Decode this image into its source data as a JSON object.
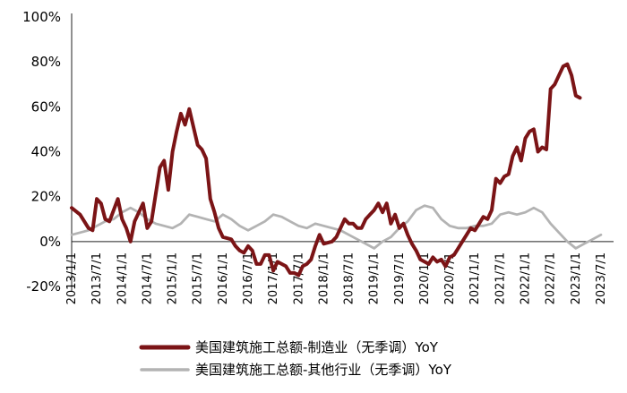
{
  "chart_data": {
    "type": "line",
    "title": "",
    "xlabel": "",
    "ylabel": "",
    "ylim": [
      -20,
      100
    ],
    "yticks": [
      "100%",
      "80%",
      "60%",
      "40%",
      "20%",
      "0%",
      "-20%"
    ],
    "ytick_values": [
      100,
      80,
      60,
      40,
      20,
      0,
      -20
    ],
    "xlim": [
      "2013-01",
      "2023-10"
    ],
    "xticks": [
      "2013/1/1",
      "2013/7/1",
      "2014/1/1",
      "2014/7/1",
      "2015/1/1",
      "2015/7/1",
      "2016/1/1",
      "2016/7/1",
      "2017/1/1",
      "2017/7/1",
      "2018/1/1",
      "2018/7/1",
      "2019/1/1",
      "2019/7/1",
      "2020/1/1",
      "2020/7/1",
      "2021/1/1",
      "2021/7/1",
      "2022/1/1",
      "2022/7/1",
      "2023/1/1",
      "2023/7/1"
    ],
    "xtick_dates": [
      "2013-01",
      "2013-07",
      "2014-01",
      "2014-07",
      "2015-01",
      "2015-07",
      "2016-01",
      "2016-07",
      "2017-01",
      "2017-07",
      "2018-01",
      "2018-07",
      "2019-01",
      "2019-07",
      "2020-01",
      "2020-07",
      "2021-01",
      "2021-07",
      "2022-01",
      "2022-07",
      "2023-01",
      "2023-07"
    ],
    "grid": false,
    "legend_position": "bottom",
    "series": [
      {
        "name": "美国建筑施工总额-制造业（无季调）YoY",
        "color": "#7b1416",
        "points": [
          [
            "2013-01",
            15
          ],
          [
            "2013-03",
            12
          ],
          [
            "2013-05",
            6
          ],
          [
            "2013-06",
            5
          ],
          [
            "2013-07",
            19
          ],
          [
            "2013-08",
            17
          ],
          [
            "2013-09",
            10
          ],
          [
            "2013-10",
            9
          ],
          [
            "2013-12",
            19
          ],
          [
            "2014-01",
            10
          ],
          [
            "2014-02",
            6
          ],
          [
            "2014-03",
            0
          ],
          [
            "2014-04",
            9
          ],
          [
            "2014-06",
            17
          ],
          [
            "2014-07",
            6
          ],
          [
            "2014-08",
            9
          ],
          [
            "2014-10",
            33
          ],
          [
            "2014-11",
            36
          ],
          [
            "2014-12",
            23
          ],
          [
            "2015-01",
            40
          ],
          [
            "2015-02",
            49
          ],
          [
            "2015-03",
            57
          ],
          [
            "2015-04",
            52
          ],
          [
            "2015-05",
            59
          ],
          [
            "2015-06",
            51
          ],
          [
            "2015-07",
            43
          ],
          [
            "2015-08",
            41
          ],
          [
            "2015-09",
            37
          ],
          [
            "2015-10",
            19
          ],
          [
            "2015-11",
            13
          ],
          [
            "2015-12",
            6
          ],
          [
            "2016-01",
            2
          ],
          [
            "2016-03",
            1
          ],
          [
            "2016-04",
            -2
          ],
          [
            "2016-05",
            -4
          ],
          [
            "2016-06",
            -5
          ],
          [
            "2016-07",
            -2
          ],
          [
            "2016-08",
            -4
          ],
          [
            "2016-09",
            -10
          ],
          [
            "2016-10",
            -10
          ],
          [
            "2016-11",
            -6
          ],
          [
            "2016-12",
            -6
          ],
          [
            "2017-01",
            -13
          ],
          [
            "2017-02",
            -9
          ],
          [
            "2017-04",
            -11
          ],
          [
            "2017-05",
            -14
          ],
          [
            "2017-06",
            -14
          ],
          [
            "2017-07",
            -15
          ],
          [
            "2017-08",
            -11
          ],
          [
            "2017-09",
            -10
          ],
          [
            "2017-10",
            -8
          ],
          [
            "2017-11",
            -2
          ],
          [
            "2017-12",
            3
          ],
          [
            "2018-01",
            -1
          ],
          [
            "2018-03",
            0
          ],
          [
            "2018-04",
            2
          ],
          [
            "2018-06",
            10
          ],
          [
            "2018-07",
            8
          ],
          [
            "2018-08",
            8
          ],
          [
            "2018-09",
            6
          ],
          [
            "2018-10",
            6
          ],
          [
            "2018-11",
            10
          ],
          [
            "2018-12",
            12
          ],
          [
            "2019-01",
            14
          ],
          [
            "2019-02",
            17
          ],
          [
            "2019-03",
            13
          ],
          [
            "2019-04",
            17
          ],
          [
            "2019-05",
            8
          ],
          [
            "2019-06",
            12
          ],
          [
            "2019-07",
            6
          ],
          [
            "2019-08",
            8
          ],
          [
            "2019-09",
            3
          ],
          [
            "2019-10",
            -1
          ],
          [
            "2019-11",
            -4
          ],
          [
            "2019-12",
            -8
          ],
          [
            "2020-01",
            -9
          ],
          [
            "2020-02",
            -10
          ],
          [
            "2020-03",
            -7
          ],
          [
            "2020-04",
            -9
          ],
          [
            "2020-05",
            -8
          ],
          [
            "2020-06",
            -11
          ],
          [
            "2020-07",
            -7
          ],
          [
            "2020-08",
            -6
          ],
          [
            "2020-09",
            -3
          ],
          [
            "2020-10",
            0
          ],
          [
            "2020-11",
            3
          ],
          [
            "2020-12",
            6
          ],
          [
            "2021-01",
            5
          ],
          [
            "2021-02",
            8
          ],
          [
            "2021-03",
            11
          ],
          [
            "2021-04",
            10
          ],
          [
            "2021-05",
            14
          ],
          [
            "2021-06",
            28
          ],
          [
            "2021-07",
            26
          ],
          [
            "2021-08",
            29
          ],
          [
            "2021-09",
            30
          ],
          [
            "2021-10",
            38
          ],
          [
            "2021-11",
            42
          ],
          [
            "2021-12",
            36
          ],
          [
            "2022-01",
            46
          ],
          [
            "2022-02",
            49
          ],
          [
            "2022-03",
            50
          ],
          [
            "2022-04",
            40
          ],
          [
            "2022-05",
            42
          ],
          [
            "2022-06",
            41
          ],
          [
            "2022-07",
            68
          ],
          [
            "2022-08",
            70
          ],
          [
            "2022-09",
            74
          ],
          [
            "2022-10",
            78
          ],
          [
            "2022-11",
            79
          ],
          [
            "2022-12",
            74
          ],
          [
            "2023-01",
            65
          ],
          [
            "2023-02",
            64
          ]
        ]
      },
      {
        "name": "美国建筑施工总额-其他行业（无季调）YoY",
        "color": "#b3b3b3",
        "points": [
          [
            "2013-01",
            3
          ],
          [
            "2013-03",
            4
          ],
          [
            "2013-05",
            5
          ],
          [
            "2013-07",
            7
          ],
          [
            "2013-09",
            9
          ],
          [
            "2013-11",
            10
          ],
          [
            "2014-01",
            13
          ],
          [
            "2014-03",
            15
          ],
          [
            "2014-05",
            13
          ],
          [
            "2014-07",
            10
          ],
          [
            "2014-09",
            8
          ],
          [
            "2014-11",
            7
          ],
          [
            "2015-01",
            6
          ],
          [
            "2015-03",
            8
          ],
          [
            "2015-05",
            12
          ],
          [
            "2015-07",
            11
          ],
          [
            "2015-09",
            10
          ],
          [
            "2015-11",
            9
          ],
          [
            "2016-01",
            12
          ],
          [
            "2016-03",
            10
          ],
          [
            "2016-05",
            7
          ],
          [
            "2016-07",
            5
          ],
          [
            "2016-09",
            7
          ],
          [
            "2016-11",
            9
          ],
          [
            "2017-01",
            12
          ],
          [
            "2017-03",
            11
          ],
          [
            "2017-05",
            9
          ],
          [
            "2017-07",
            7
          ],
          [
            "2017-09",
            6
          ],
          [
            "2017-11",
            8
          ],
          [
            "2018-01",
            7
          ],
          [
            "2018-03",
            6
          ],
          [
            "2018-05",
            5
          ],
          [
            "2018-07",
            3
          ],
          [
            "2018-09",
            1
          ],
          [
            "2018-11",
            -1
          ],
          [
            "2019-01",
            -3
          ],
          [
            "2019-03",
            0
          ],
          [
            "2019-05",
            2
          ],
          [
            "2019-07",
            6
          ],
          [
            "2019-09",
            9
          ],
          [
            "2019-11",
            14
          ],
          [
            "2020-01",
            16
          ],
          [
            "2020-03",
            15
          ],
          [
            "2020-05",
            10
          ],
          [
            "2020-07",
            7
          ],
          [
            "2020-09",
            6
          ],
          [
            "2020-11",
            6
          ],
          [
            "2021-01",
            7
          ],
          [
            "2021-03",
            7
          ],
          [
            "2021-05",
            8
          ],
          [
            "2021-07",
            12
          ],
          [
            "2021-09",
            13
          ],
          [
            "2021-11",
            12
          ],
          [
            "2022-01",
            13
          ],
          [
            "2022-03",
            15
          ],
          [
            "2022-05",
            13
          ],
          [
            "2022-07",
            8
          ],
          [
            "2022-09",
            4
          ],
          [
            "2022-11",
            0
          ],
          [
            "2023-01",
            -3
          ],
          [
            "2023-03",
            -1
          ],
          [
            "2023-05",
            1
          ],
          [
            "2023-07",
            3
          ]
        ]
      }
    ]
  }
}
